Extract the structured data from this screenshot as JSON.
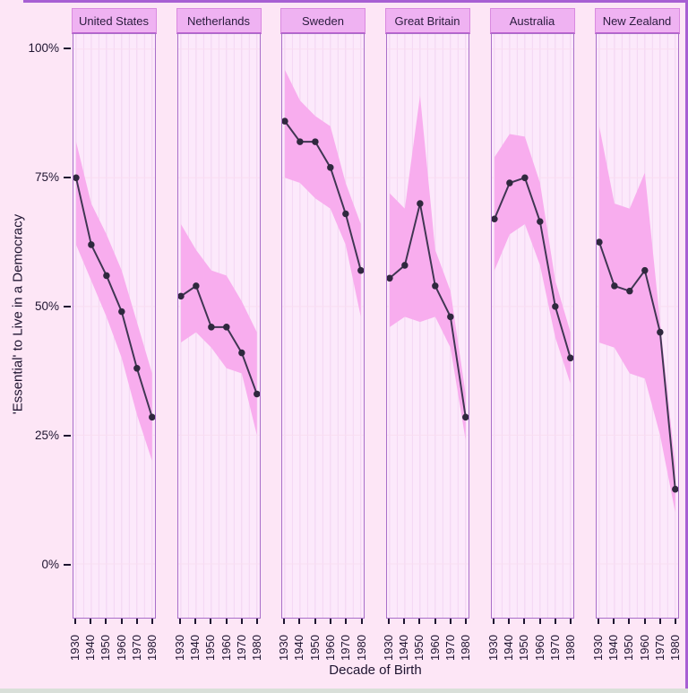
{
  "figure": {
    "y_axis": {
      "title": "'Essential' to Live in a Democracy",
      "ticks": [
        "100%",
        "75%",
        "50%",
        "25%",
        "0%"
      ]
    },
    "x_axis": {
      "title": "Decade of Birth",
      "ticks": [
        "1930",
        "1940",
        "1950",
        "1960",
        "1970",
        "1980"
      ]
    }
  },
  "chart_data": {
    "type": "line",
    "title": "",
    "xlabel": "Decade of Birth",
    "ylabel": "'Essential' to Live in a Democracy",
    "ylim": [
      0,
      100
    ],
    "y_tick_labels": [
      "100%",
      "75%",
      "50%",
      "25%",
      "0%"
    ],
    "x": [
      "1930",
      "1940",
      "1950",
      "1960",
      "1970",
      "1980"
    ],
    "grid": "on",
    "legend": "none",
    "band": "confidence band around each line",
    "facets": [
      {
        "name": "United States",
        "values": [
          75,
          62,
          56,
          49,
          38,
          28.5
        ],
        "upper": [
          82,
          70,
          64,
          57,
          47,
          37
        ],
        "lower": [
          62,
          55,
          48,
          40,
          29,
          20
        ]
      },
      {
        "name": "Netherlands",
        "values": [
          52,
          54,
          46,
          46,
          41,
          33
        ],
        "upper": [
          66,
          61,
          57,
          56,
          51,
          45
        ],
        "lower": [
          43,
          45,
          42,
          38,
          37,
          25
        ]
      },
      {
        "name": "Sweden",
        "values": [
          86,
          82,
          82,
          77,
          68,
          57
        ],
        "upper": [
          96,
          90,
          87,
          85,
          74,
          66
        ],
        "lower": [
          75,
          74,
          71,
          69,
          62,
          48
        ]
      },
      {
        "name": "Great Britain",
        "values": [
          55.5,
          58,
          70,
          54,
          48,
          28.5
        ],
        "upper": [
          72,
          69,
          91,
          61,
          53,
          33
        ],
        "lower": [
          46,
          48,
          47,
          48,
          42,
          24
        ]
      },
      {
        "name": "Australia",
        "values": [
          67,
          74,
          75,
          66.5,
          50,
          40
        ],
        "upper": [
          79,
          83.5,
          83,
          74,
          55,
          45
        ],
        "lower": [
          57,
          64,
          66,
          58,
          44,
          35
        ]
      },
      {
        "name": "New Zealand",
        "values": [
          62.5,
          54,
          53,
          57,
          45,
          14.5
        ],
        "upper": [
          85,
          70,
          69,
          76,
          47,
          19
        ],
        "lower": [
          43,
          42,
          37,
          36,
          25,
          10
        ]
      }
    ]
  },
  "colors": {
    "background": "#fde6f6",
    "panel_background": "#fce9fb",
    "strip_background": "#efb2f2",
    "panel_border": "#a96fc9",
    "band_fill": "#f8adee",
    "line": "#3f3552",
    "point": "#2f283e",
    "text": "#1e1430",
    "grid_vertical": "#f3d6f3",
    "grid_horizontal": "#f9def1",
    "frame_border": "#a75fd3",
    "bottom_strip": "#d9dfd9"
  }
}
